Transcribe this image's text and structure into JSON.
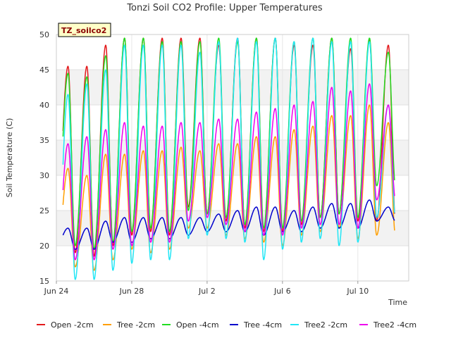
{
  "chart_data": {
    "type": "line",
    "title": "Tonzi Soil CO2 Profile: Upper Temperatures",
    "xlabel": "Time",
    "ylabel": "Soil Temperature (C)",
    "tag": "TZ_soilco2",
    "ylim": [
      15,
      50
    ],
    "xlim_days": [
      0,
      18.7
    ],
    "x_ticks": [
      {
        "day": 0,
        "label": "Jun 24"
      },
      {
        "day": 4,
        "label": "Jun 28"
      },
      {
        "day": 8,
        "label": "Jul 2"
      },
      {
        "day": 12,
        "label": "Jul 6"
      },
      {
        "day": 16,
        "label": "Jul 10"
      }
    ],
    "y_ticks": [
      15,
      20,
      25,
      30,
      35,
      40,
      45,
      50
    ],
    "x_start_day": 0.35,
    "x_end_day": 17.95,
    "peak_phase": 0.62,
    "series": [
      {
        "name": "Open -2cm",
        "color": "#e31a1c",
        "max": [
          45.5,
          45.5,
          48.5,
          49.5,
          49.5,
          49.5,
          49.5,
          49.5,
          48.5,
          49.5,
          49.5,
          49.5,
          48.5,
          48.5,
          49.5,
          48.0,
          49.2,
          48.5
        ],
        "min": [
          22.5,
          19.0,
          18.5,
          20.0,
          21.5,
          22.0,
          21.5,
          25.5,
          24.5,
          23.5,
          22.5,
          22.0,
          22.0,
          23.0,
          24.0,
          24.5,
          23.5,
          23.5
        ]
      },
      {
        "name": "Tree -2cm",
        "color": "#ff9f00",
        "max": [
          31.0,
          30.0,
          33.0,
          33.0,
          33.5,
          33.5,
          34.0,
          33.5,
          34.5,
          34.5,
          35.5,
          35.5,
          36.5,
          37.0,
          38.5,
          38.5,
          40.0,
          37.5
        ],
        "min": [
          18.0,
          17.0,
          16.5,
          18.0,
          19.5,
          19.0,
          19.5,
          22.5,
          22.5,
          21.5,
          21.0,
          20.5,
          20.0,
          21.5,
          22.0,
          22.5,
          21.0,
          21.5
        ]
      },
      {
        "name": "Open -4cm",
        "color": "#22dd22",
        "max": [
          44.5,
          44.0,
          47.0,
          49.5,
          49.5,
          49.0,
          49.0,
          49.0,
          49.5,
          49.0,
          49.5,
          49.5,
          49.0,
          49.5,
          49.5,
          49.5,
          49.5,
          47.5
        ],
        "min": [
          22.0,
          20.0,
          19.5,
          20.5,
          22.0,
          22.5,
          22.0,
          25.0,
          24.5,
          24.0,
          23.0,
          22.5,
          22.5,
          23.5,
          24.0,
          24.5,
          24.0,
          28.5
        ]
      },
      {
        "name": "Tree -4cm",
        "color": "#0000cc",
        "max": [
          22.5,
          22.5,
          23.5,
          24.0,
          24.0,
          24.0,
          24.0,
          24.0,
          24.5,
          25.0,
          25.5,
          25.5,
          25.0,
          25.5,
          26.0,
          26.0,
          26.5,
          25.5
        ],
        "min": [
          20.0,
          19.5,
          19.5,
          20.5,
          20.5,
          21.0,
          21.0,
          21.5,
          22.0,
          22.0,
          22.0,
          21.5,
          22.0,
          22.0,
          22.5,
          22.5,
          22.5,
          23.5
        ]
      },
      {
        "name": "Tree2 -2cm",
        "color": "#22e6f5",
        "max": [
          41.5,
          43.0,
          45.0,
          48.5,
          48.5,
          48.5,
          48.5,
          47.5,
          49.0,
          49.5,
          49.0,
          49.5,
          49.0,
          49.5,
          49.0,
          49.0,
          49.0,
          40.0
        ],
        "min": [
          16.5,
          15.2,
          15.2,
          16.5,
          17.5,
          18.0,
          18.0,
          21.0,
          21.5,
          21.0,
          20.5,
          18.0,
          19.5,
          20.5,
          21.0,
          20.0,
          20.5,
          24.0
        ]
      },
      {
        "name": "Tree2 -4cm",
        "color": "#ee00ee",
        "max": [
          34.5,
          35.5,
          36.5,
          37.5,
          37.0,
          37.0,
          37.5,
          37.5,
          38.0,
          38.0,
          39.0,
          39.5,
          40.0,
          40.5,
          42.5,
          42.0,
          43.0,
          40.0
        ],
        "min": [
          18.0,
          18.0,
          18.0,
          19.5,
          20.0,
          20.5,
          20.5,
          23.5,
          24.0,
          23.0,
          22.0,
          21.5,
          21.5,
          22.5,
          23.0,
          23.0,
          22.5,
          26.5
        ]
      }
    ]
  }
}
